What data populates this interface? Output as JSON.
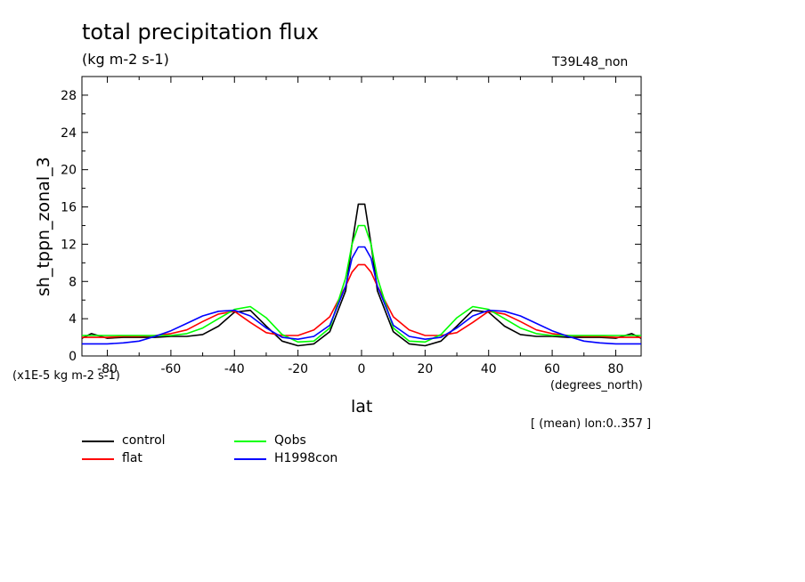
{
  "chart_data": {
    "type": "line",
    "title": "total precipitation flux",
    "units": "(kg m-2 s-1)",
    "dataset": "T39L48_non",
    "ylabel": "sh_tppn_zonal_3",
    "xlabel": "lat",
    "x_units": "(degrees_north)",
    "scale_note": "(x1E-5 kg m-2 s-1)",
    "region": "[ (mean) lon:0..357 ]",
    "xlim": [
      -88,
      88
    ],
    "ylim": [
      0,
      30
    ],
    "xticks": [
      -80,
      -60,
      -40,
      -20,
      0,
      20,
      40,
      60,
      80
    ],
    "yticks": [
      0,
      4,
      8,
      12,
      16,
      20,
      24,
      28
    ],
    "x": [
      -88,
      -85,
      -80,
      -75,
      -70,
      -65,
      -60,
      -55,
      -50,
      -45,
      -40,
      -35,
      -30,
      -25,
      -20,
      -15,
      -10,
      -5,
      -3,
      -1,
      1,
      3,
      5,
      10,
      15,
      20,
      25,
      30,
      35,
      40,
      45,
      50,
      55,
      60,
      65,
      70,
      75,
      80,
      85,
      88
    ],
    "series": [
      {
        "name": "control",
        "color": "#000000",
        "values": [
          1.9,
          2.4,
          1.9,
          2.0,
          2.0,
          2.0,
          2.1,
          2.1,
          2.3,
          3.2,
          4.7,
          4.9,
          3.2,
          1.6,
          1.1,
          1.3,
          2.6,
          7.0,
          12.0,
          16.3,
          16.3,
          12.0,
          7.0,
          2.6,
          1.3,
          1.1,
          1.6,
          3.2,
          4.9,
          4.7,
          3.2,
          2.3,
          2.1,
          2.1,
          2.0,
          2.0,
          2.0,
          1.9,
          2.4,
          1.9
        ]
      },
      {
        "name": "flat",
        "color": "#ff0000",
        "values": [
          2.0,
          2.0,
          2.0,
          2.1,
          2.1,
          2.2,
          2.4,
          2.8,
          3.7,
          4.5,
          4.8,
          3.6,
          2.5,
          2.2,
          2.2,
          2.8,
          4.2,
          7.5,
          9.0,
          9.8,
          9.8,
          9.0,
          7.5,
          4.2,
          2.8,
          2.2,
          2.2,
          2.5,
          3.6,
          4.8,
          4.5,
          3.7,
          2.8,
          2.4,
          2.2,
          2.1,
          2.1,
          2.0,
          2.0,
          2.0
        ]
      },
      {
        "name": "Qobs",
        "color": "#00ff00",
        "values": [
          2.2,
          2.2,
          2.2,
          2.2,
          2.2,
          2.2,
          2.2,
          2.4,
          3.0,
          4.0,
          5.0,
          5.3,
          4.1,
          2.3,
          1.5,
          1.6,
          3.0,
          8.4,
          12.0,
          14.0,
          14.0,
          12.0,
          8.4,
          3.0,
          1.6,
          1.5,
          2.3,
          4.1,
          5.3,
          5.0,
          4.0,
          3.0,
          2.4,
          2.2,
          2.2,
          2.2,
          2.2,
          2.2,
          2.2,
          2.2
        ]
      },
      {
        "name": "H1998con",
        "color": "#0000ff",
        "values": [
          1.3,
          1.3,
          1.3,
          1.4,
          1.6,
          2.1,
          2.7,
          3.5,
          4.3,
          4.8,
          4.9,
          4.3,
          3.0,
          2.0,
          1.8,
          2.1,
          3.3,
          7.5,
          10.5,
          11.7,
          11.7,
          10.5,
          7.5,
          3.3,
          2.1,
          1.8,
          2.0,
          3.0,
          4.3,
          4.9,
          4.8,
          4.3,
          3.5,
          2.7,
          2.1,
          1.6,
          1.4,
          1.3,
          1.3,
          1.3
        ]
      }
    ],
    "legend_placement": "bottom-left",
    "grid": false
  }
}
